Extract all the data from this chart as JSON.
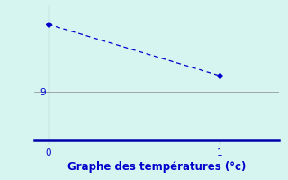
{
  "x_values": [
    0,
    1
  ],
  "y_values": [
    11.5,
    9.6
  ],
  "xlim": [
    -0.08,
    1.35
  ],
  "ylim": [
    7.2,
    12.2
  ],
  "yticks": [
    9
  ],
  "xticks": [
    0,
    1
  ],
  "xlabel": "Graphe des températures (°c)",
  "line_color": "#0000cc",
  "marker": "D",
  "marker_size": 3,
  "bg_color": "#d6f5f0",
  "grid_color": "#999999",
  "spine_color": "#666666",
  "bottom_spine_color": "#0000aa",
  "tick_color": "#0000cc",
  "xlabel_color": "#0000cc",
  "xlabel_fontsize": 8.5
}
